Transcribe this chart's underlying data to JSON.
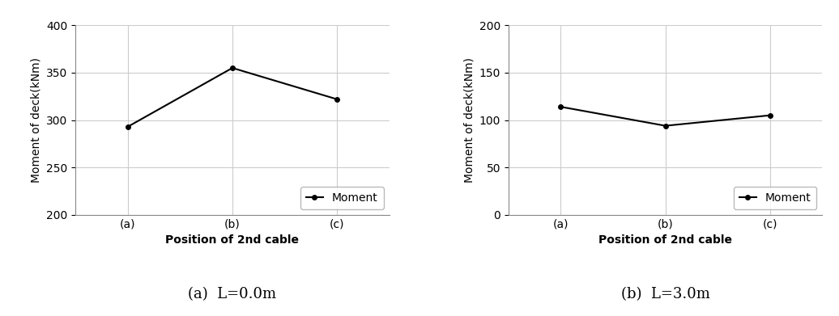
{
  "chart_a": {
    "x": [
      0,
      1,
      2
    ],
    "y": [
      293,
      355,
      322
    ],
    "x_tick_labels": [
      "(a)",
      "(b)",
      "(c)"
    ],
    "ylabel": "Moment of deck(kNm)",
    "xlabel": "Position of 2nd cable",
    "ylim": [
      200,
      400
    ],
    "yticks": [
      200,
      250,
      300,
      350,
      400
    ],
    "legend_label": "Moment",
    "subtitle": "(a)  L=0.0m"
  },
  "chart_b": {
    "x": [
      0,
      1,
      2
    ],
    "y": [
      114,
      94,
      105
    ],
    "x_tick_labels": [
      "(a)",
      "(b)",
      "(c)"
    ],
    "ylabel": "Moment of deck(kNm)",
    "xlabel": "Position of 2nd cable",
    "ylim": [
      0,
      200
    ],
    "yticks": [
      0,
      50,
      100,
      150,
      200
    ],
    "legend_label": "Moment",
    "subtitle": "(b)  L=3.0m"
  },
  "line_color": "#000000",
  "marker": "o",
  "marker_size": 4,
  "line_width": 1.5,
  "grid_color": "#cccccc",
  "background_color": "#ffffff",
  "font_size_tick": 10,
  "font_size_label": 10,
  "font_size_subtitle": 13,
  "font_size_legend": 10
}
